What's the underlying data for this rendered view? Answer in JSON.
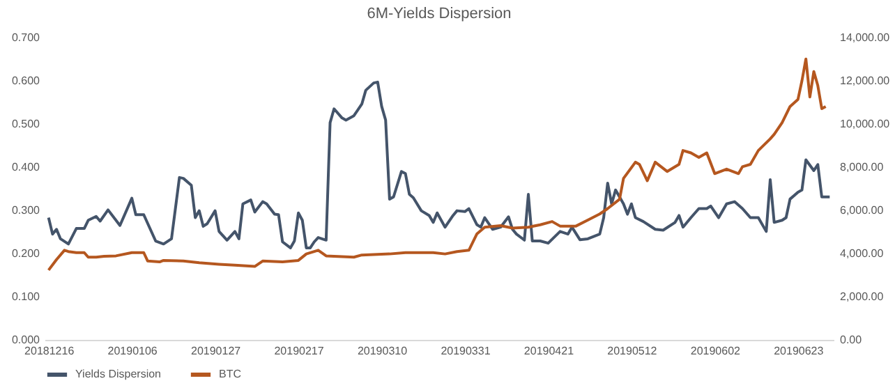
{
  "chart_data": {
    "type": "line",
    "title": "6M-Yields Dispersion",
    "xlim": [
      "2018-12-15",
      "2019-07-02"
    ],
    "xticks": [
      {
        "value": "2018-12-16",
        "label": "20181216"
      },
      {
        "value": "2019-01-06",
        "label": "20190106"
      },
      {
        "value": "2019-01-27",
        "label": "20190127"
      },
      {
        "value": "2019-02-17",
        "label": "20190217"
      },
      {
        "value": "2019-03-10",
        "label": "20190310"
      },
      {
        "value": "2019-03-31",
        "label": "20190331"
      },
      {
        "value": "2019-04-21",
        "label": "20190421"
      },
      {
        "value": "2019-05-12",
        "label": "20190512"
      },
      {
        "value": "2019-06-02",
        "label": "20190602"
      },
      {
        "value": "2019-06-23",
        "label": "20190623"
      }
    ],
    "ylim": [
      0,
      0.7
    ],
    "yticks": [
      {
        "value": 0,
        "label": "0.000"
      },
      {
        "value": 0.1,
        "label": "0.100"
      },
      {
        "value": 0.2,
        "label": "0.200"
      },
      {
        "value": 0.3,
        "label": "0.300"
      },
      {
        "value": 0.4,
        "label": "0.400"
      },
      {
        "value": 0.5,
        "label": "0.500"
      },
      {
        "value": 0.6,
        "label": "0.600"
      },
      {
        "value": 0.7,
        "label": "0.700"
      }
    ],
    "y2lim": [
      0,
      14000
    ],
    "y2ticks": [
      {
        "value": 0,
        "label": "0.00"
      },
      {
        "value": 2000,
        "label": "2,000.00"
      },
      {
        "value": 4000,
        "label": "4,000.00"
      },
      {
        "value": 6000,
        "label": "6,000.00"
      },
      {
        "value": 8000,
        "label": "8,000.00"
      },
      {
        "value": 10000,
        "label": "10,000.00"
      },
      {
        "value": 12000,
        "label": "12,000.00"
      },
      {
        "value": 14000,
        "label": "14,000.00"
      }
    ],
    "legend": "bottom",
    "grid": false,
    "series": [
      {
        "name": "Yields Dispersion",
        "color": "#44546a",
        "x": [
          "2018-12-16",
          "2018-12-17",
          "2018-12-18",
          "2018-12-19",
          "2018-12-21",
          "2018-12-23",
          "2018-12-25",
          "2018-12-26",
          "2018-12-28",
          "2018-12-29",
          "2018-12-31",
          "2019-01-03",
          "2019-01-06",
          "2019-01-07",
          "2019-01-09",
          "2019-01-12",
          "2019-01-14",
          "2019-01-16",
          "2019-01-18",
          "2019-01-19",
          "2019-01-21",
          "2019-01-22",
          "2019-01-23",
          "2019-01-24",
          "2019-01-25",
          "2019-01-27",
          "2019-01-28",
          "2019-01-30",
          "2019-02-01",
          "2019-02-02",
          "2019-02-03",
          "2019-02-05",
          "2019-02-06",
          "2019-02-08",
          "2019-02-09",
          "2019-02-11",
          "2019-02-12",
          "2019-02-13",
          "2019-02-15",
          "2019-02-16",
          "2019-02-17",
          "2019-02-18",
          "2019-02-19",
          "2019-02-20",
          "2019-02-21",
          "2019-02-22",
          "2019-02-24",
          "2019-02-25",
          "2019-02-26",
          "2019-02-28",
          "2019-03-01",
          "2019-03-03",
          "2019-03-05",
          "2019-03-06",
          "2019-03-08",
          "2019-03-09",
          "2019-03-10",
          "2019-03-11",
          "2019-03-12",
          "2019-03-13",
          "2019-03-15",
          "2019-03-16",
          "2019-03-17",
          "2019-03-18",
          "2019-03-20",
          "2019-03-22",
          "2019-03-23",
          "2019-03-24",
          "2019-03-26",
          "2019-03-28",
          "2019-03-29",
          "2019-03-31",
          "2019-04-01",
          "2019-04-03",
          "2019-04-04",
          "2019-04-05",
          "2019-04-07",
          "2019-04-09",
          "2019-04-11",
          "2019-04-12",
          "2019-04-13",
          "2019-04-15",
          "2019-04-16",
          "2019-04-17",
          "2019-04-19",
          "2019-04-21",
          "2019-04-24",
          "2019-04-26",
          "2019-04-27",
          "2019-04-29",
          "2019-05-01",
          "2019-05-04",
          "2019-05-05",
          "2019-05-06",
          "2019-05-07",
          "2019-05-08",
          "2019-05-10",
          "2019-05-11",
          "2019-05-12",
          "2019-05-13",
          "2019-05-15",
          "2019-05-18",
          "2019-05-20",
          "2019-05-23",
          "2019-05-24",
          "2019-05-25",
          "2019-05-27",
          "2019-05-29",
          "2019-05-31",
          "2019-06-01",
          "2019-06-03",
          "2019-06-05",
          "2019-06-07",
          "2019-06-09",
          "2019-06-11",
          "2019-06-13",
          "2019-06-15",
          "2019-06-16",
          "2019-06-17",
          "2019-06-19",
          "2019-06-20",
          "2019-06-21",
          "2019-06-23",
          "2019-06-24",
          "2019-06-25",
          "2019-06-27",
          "2019-06-28",
          "2019-06-29",
          "2019-07-01"
        ],
        "values": [
          0.283,
          0.245,
          0.256,
          0.234,
          0.222,
          0.258,
          0.258,
          0.277,
          0.286,
          0.275,
          0.301,
          0.265,
          0.328,
          0.29,
          0.29,
          0.229,
          0.222,
          0.234,
          0.376,
          0.374,
          0.358,
          0.283,
          0.299,
          0.263,
          0.269,
          0.299,
          0.251,
          0.231,
          0.251,
          0.234,
          0.315,
          0.324,
          0.296,
          0.32,
          0.315,
          0.291,
          0.29,
          0.227,
          0.213,
          0.229,
          0.294,
          0.277,
          0.213,
          0.213,
          0.227,
          0.237,
          0.231,
          0.503,
          0.535,
          0.514,
          0.509,
          0.519,
          0.546,
          0.578,
          0.595,
          0.597,
          0.541,
          0.509,
          0.326,
          0.331,
          0.39,
          0.385,
          0.337,
          0.329,
          0.299,
          0.288,
          0.272,
          0.294,
          0.261,
          0.288,
          0.299,
          0.297,
          0.304,
          0.267,
          0.261,
          0.283,
          0.256,
          0.261,
          0.285,
          0.256,
          0.245,
          0.231,
          0.337,
          0.229,
          0.229,
          0.224,
          0.251,
          0.245,
          0.261,
          0.232,
          0.234,
          0.245,
          0.283,
          0.363,
          0.315,
          0.347,
          0.315,
          0.291,
          0.315,
          0.283,
          0.274,
          0.256,
          0.254,
          0.272,
          0.288,
          0.261,
          0.283,
          0.304,
          0.304,
          0.31,
          0.283,
          0.315,
          0.32,
          0.304,
          0.283,
          0.283,
          0.251,
          0.371,
          0.272,
          0.277,
          0.283,
          0.326,
          0.342,
          0.347,
          0.417,
          0.392,
          0.406,
          0.331,
          0.331
        ]
      },
      {
        "name": "BTC",
        "color": "#b5571f",
        "axis": "y2",
        "x": [
          "2018-12-16",
          "2018-12-18",
          "2018-12-20",
          "2018-12-21",
          "2018-12-23",
          "2018-12-25",
          "2018-12-26",
          "2018-12-28",
          "2018-12-30",
          "2019-01-02",
          "2019-01-06",
          "2019-01-09",
          "2019-01-10",
          "2019-01-13",
          "2019-01-14",
          "2019-01-19",
          "2019-01-23",
          "2019-01-28",
          "2019-02-01",
          "2019-02-06",
          "2019-02-08",
          "2019-02-13",
          "2019-02-17",
          "2019-02-19",
          "2019-02-22",
          "2019-02-24",
          "2019-03-03",
          "2019-03-05",
          "2019-03-12",
          "2019-03-16",
          "2019-03-19",
          "2019-03-23",
          "2019-03-26",
          "2019-03-29",
          "2019-04-01",
          "2019-04-03",
          "2019-04-05",
          "2019-04-09",
          "2019-04-12",
          "2019-04-16",
          "2019-04-19",
          "2019-04-22",
          "2019-04-24",
          "2019-04-28",
          "2019-05-01",
          "2019-05-04",
          "2019-05-06",
          "2019-05-09",
          "2019-05-10",
          "2019-05-13",
          "2019-05-14",
          "2019-05-16",
          "2019-05-18",
          "2019-05-21",
          "2019-05-24",
          "2019-05-25",
          "2019-05-27",
          "2019-05-29",
          "2019-05-31",
          "2019-06-02",
          "2019-06-05",
          "2019-06-08",
          "2019-06-09",
          "2019-06-11",
          "2019-06-13",
          "2019-06-16",
          "2019-06-17",
          "2019-06-19",
          "2019-06-21",
          "2019-06-23",
          "2019-06-24",
          "2019-06-25",
          "2019-06-26",
          "2019-06-27",
          "2019-06-28",
          "2019-06-29",
          "2019-06-30"
        ],
        "values": [
          3230,
          3720,
          4150,
          4090,
          4040,
          4040,
          3830,
          3830,
          3870,
          3890,
          4040,
          4040,
          3650,
          3610,
          3680,
          3650,
          3570,
          3500,
          3460,
          3400,
          3650,
          3610,
          3680,
          3980,
          4150,
          3890,
          3830,
          3930,
          3980,
          4040,
          4040,
          4040,
          3980,
          4090,
          4150,
          4900,
          5220,
          5290,
          5180,
          5220,
          5330,
          5480,
          5270,
          5270,
          5550,
          5830,
          6080,
          6510,
          7480,
          8230,
          8130,
          7370,
          8230,
          7800,
          8130,
          8770,
          8660,
          8450,
          8660,
          7700,
          7910,
          7700,
          8020,
          8130,
          8770,
          9310,
          9520,
          10060,
          10810,
          11140,
          12000,
          13010,
          11250,
          12430,
          11780,
          10710,
          10810
        ]
      }
    ]
  }
}
